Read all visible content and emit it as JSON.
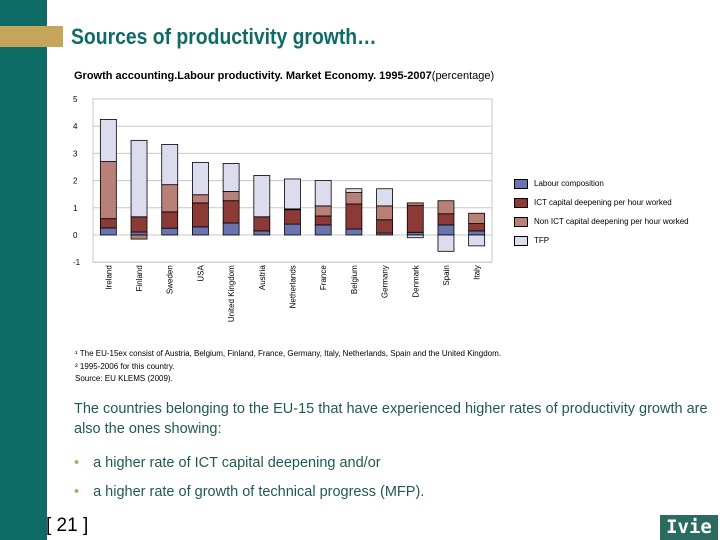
{
  "slide": {
    "title": "Sources of productivity growth…",
    "page": "[ 21 ]",
    "logo": "Ivie"
  },
  "chart_data": {
    "type": "bar",
    "stacked": true,
    "title": "Growth accounting.Labour productivity. Market Economy. 1995-2007",
    "title_suffix": "(percentage)",
    "categories": [
      "Ireland",
      "Finland",
      "Sweden",
      "USA",
      "United Kingdom",
      "Austria",
      "Netherlands",
      "France",
      "Belgium",
      "Germany",
      "Denmark",
      "Spain",
      "Italy"
    ],
    "series": [
      {
        "name": "Labour composition",
        "color": "#6a74b0",
        "values": [
          0.26,
          0.11,
          0.25,
          0.3,
          0.44,
          0.15,
          0.4,
          0.37,
          0.22,
          0.07,
          0.1,
          0.37,
          0.15
        ]
      },
      {
        "name": "ICT capital deepening per hour worked",
        "color": "#8b3a36",
        "values": [
          0.34,
          0.56,
          0.6,
          0.88,
          0.82,
          0.52,
          0.53,
          0.33,
          0.92,
          0.49,
          0.98,
          0.41,
          0.27
        ]
      },
      {
        "name": "Non ICT capital deepening per hour worked",
        "color": "#b88078",
        "values": [
          2.1,
          -0.15,
          1.0,
          0.3,
          0.34,
          0.0,
          0.03,
          0.37,
          0.42,
          0.51,
          0.1,
          0.48,
          0.38
        ]
      },
      {
        "name": "TFP",
        "color": "#dcdcee",
        "values": [
          1.55,
          2.81,
          1.48,
          1.19,
          1.03,
          1.52,
          1.1,
          0.93,
          0.14,
          0.63,
          -0.1,
          -0.6,
          -0.4
        ]
      }
    ],
    "ylim": [
      -1,
      5
    ],
    "yticks": [
      "-1",
      "0",
      "1",
      "2",
      "3",
      "4",
      "5"
    ],
    "grid": true,
    "legend": "right"
  },
  "footnotes": [
    "¹ The EU-15ex consist of Austria, Belgium, Finland, France, Germany, Italy, Netherlands, Spain and the United Kingdom.",
    "² 1995-2006 for this country.",
    "Source: EU KLEMS (2009)."
  ],
  "text": {
    "paragraph": "The countries belonging to the EU-15 that have experienced higher rates of productivity growth are also the ones showing:",
    "bullets": [
      "a higher rate of ICT capital deepening and/or",
      "a higher rate of growth of technical progress (MFP)."
    ],
    "bullet_glyph": "•"
  }
}
